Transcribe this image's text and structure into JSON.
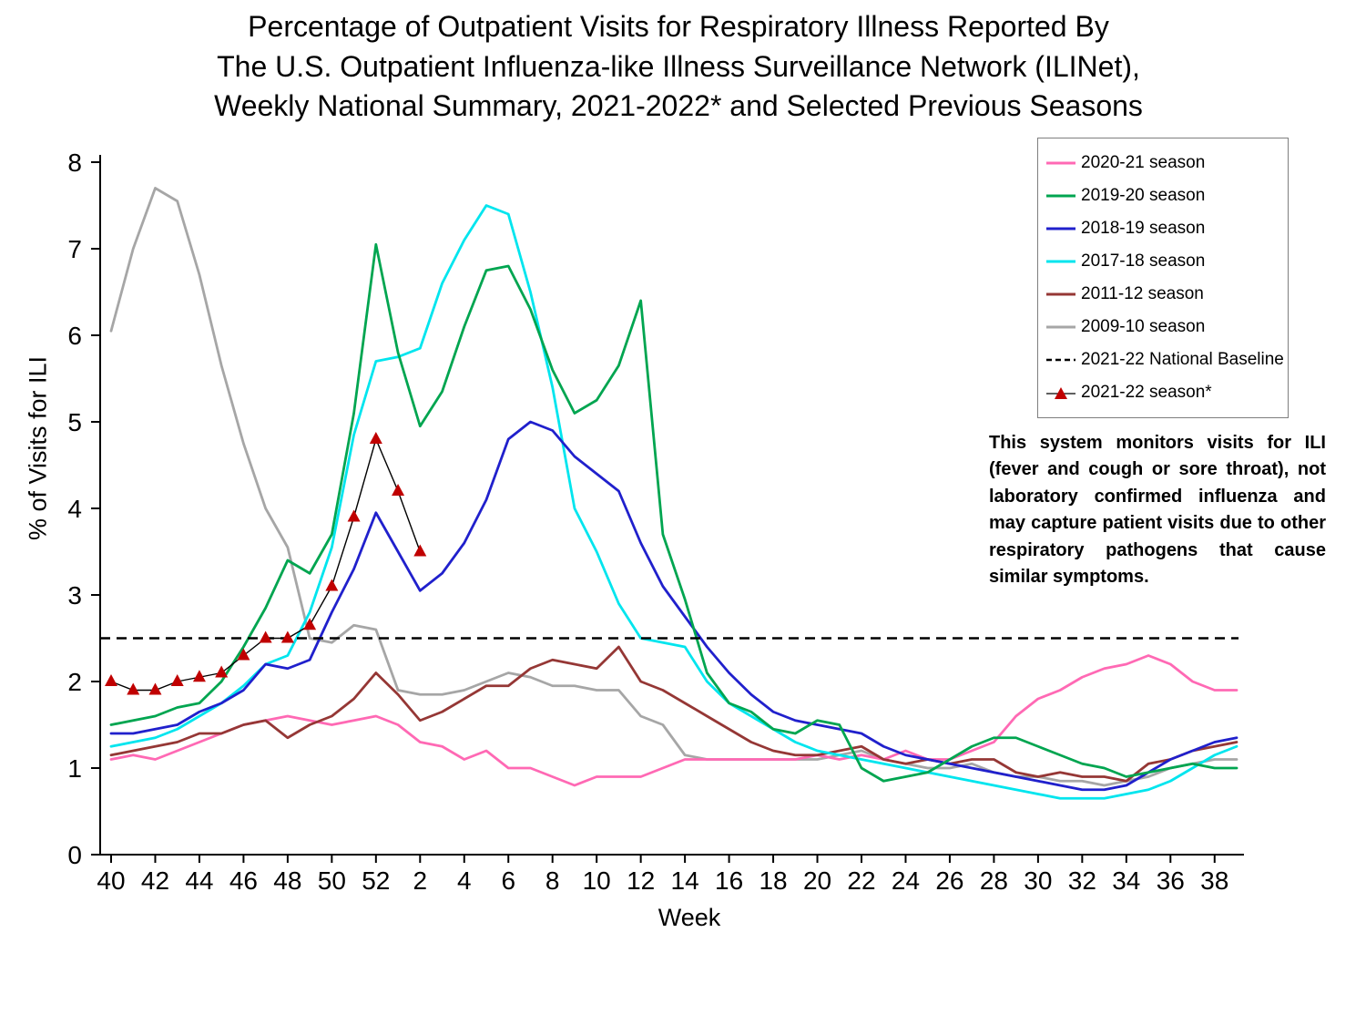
{
  "title": {
    "line1": "Percentage of Outpatient Visits for Respiratory Illness Reported By",
    "line2": "The U.S. Outpatient Influenza-like Illness Surveillance Network (ILINet),",
    "line3": "Weekly National Summary, 2021-2022* and Selected Previous Seasons"
  },
  "annotation": {
    "text": "This system monitors visits for ILI (fever and cough or sore throat), not laboratory confirmed influenza and may capture patient visits due to other respiratory pathogens that cause similar symptoms."
  },
  "legend": {
    "items": [
      {
        "label": "2020-21 season",
        "color": "#FF69B4",
        "style": "solid"
      },
      {
        "label": "2019-20 season",
        "color": "#00A550",
        "style": "solid"
      },
      {
        "label": "2018-19 season",
        "color": "#2020CC",
        "style": "solid"
      },
      {
        "label": "2017-18 season",
        "color": "#00E5EE",
        "style": "solid"
      },
      {
        "label": "2011-12 season",
        "color": "#953735",
        "style": "solid"
      },
      {
        "label": "2009-10 season",
        "color": "#A6A6A6",
        "style": "solid"
      },
      {
        "label": "2021-22 National Baseline",
        "color": "#000000",
        "style": "dashed"
      },
      {
        "label": "2021-22 season*",
        "color": "#C00000",
        "style": "triangle"
      }
    ]
  },
  "chart_data": {
    "type": "line",
    "title": "Percentage of Outpatient Visits for Respiratory Illness Reported By The U.S. Outpatient Influenza-like Illness Surveillance Network (ILINet), Weekly National Summary, 2021-2022* and Selected Previous Seasons",
    "xlabel": "Week",
    "ylabel": "% of Visits for ILI",
    "ylim": [
      0,
      8
    ],
    "y_ticks": [
      0,
      1,
      2,
      3,
      4,
      5,
      6,
      7,
      8
    ],
    "x_categories": [
      40,
      41,
      42,
      43,
      44,
      45,
      46,
      47,
      48,
      49,
      50,
      51,
      52,
      1,
      2,
      3,
      4,
      5,
      6,
      7,
      8,
      9,
      10,
      11,
      12,
      13,
      14,
      15,
      16,
      17,
      18,
      19,
      20,
      21,
      22,
      23,
      24,
      25,
      26,
      27,
      28,
      29,
      30,
      31,
      32,
      33,
      34,
      35,
      36,
      37,
      38,
      39
    ],
    "x_tick_labels": [
      40,
      42,
      44,
      46,
      48,
      50,
      52,
      2,
      4,
      6,
      8,
      10,
      12,
      14,
      16,
      18,
      20,
      22,
      24,
      26,
      28,
      30,
      32,
      34,
      36,
      38
    ],
    "baseline": {
      "label": "2021-22 National Baseline",
      "value": 2.5
    },
    "legend_position": "top-right",
    "grid": false,
    "series": [
      {
        "name": "2009-10 season",
        "color": "#A6A6A6",
        "values": [
          6.05,
          7.0,
          7.7,
          7.55,
          6.7,
          5.65,
          4.75,
          4.0,
          3.55,
          2.5,
          2.45,
          2.65,
          2.6,
          1.9,
          1.85,
          1.85,
          1.9,
          2.0,
          2.1,
          2.05,
          1.95,
          1.95,
          1.9,
          1.9,
          1.6,
          1.5,
          1.15,
          1.1,
          1.1,
          1.1,
          1.1,
          1.1,
          1.1,
          1.15,
          1.2,
          1.1,
          1.05,
          1.0,
          1.0,
          1.05,
          0.95,
          0.9,
          0.9,
          0.85,
          0.85,
          0.8,
          0.85,
          0.9,
          1.0,
          1.05,
          1.1,
          1.1
        ]
      },
      {
        "name": "2020-21 season",
        "color": "#FF69B4",
        "values": [
          1.1,
          1.15,
          1.1,
          1.2,
          1.3,
          1.4,
          1.5,
          1.55,
          1.6,
          1.55,
          1.5,
          1.55,
          1.6,
          1.5,
          1.3,
          1.25,
          1.1,
          1.2,
          1.0,
          1.0,
          0.9,
          0.8,
          0.9,
          0.9,
          0.9,
          1.0,
          1.1,
          1.1,
          1.1,
          1.1,
          1.1,
          1.1,
          1.15,
          1.1,
          1.15,
          1.1,
          1.2,
          1.1,
          1.1,
          1.2,
          1.3,
          1.6,
          1.8,
          1.9,
          2.05,
          2.15,
          2.2,
          2.3,
          2.2,
          2.0,
          1.9,
          1.9
        ]
      },
      {
        "name": "2011-12 season",
        "color": "#953735",
        "values": [
          1.15,
          1.2,
          1.25,
          1.3,
          1.4,
          1.4,
          1.5,
          1.55,
          1.35,
          1.5,
          1.6,
          1.8,
          2.1,
          1.85,
          1.55,
          1.65,
          1.8,
          1.95,
          1.95,
          2.15,
          2.25,
          2.2,
          2.15,
          2.4,
          2.0,
          1.9,
          1.75,
          1.6,
          1.45,
          1.3,
          1.2,
          1.15,
          1.15,
          1.2,
          1.25,
          1.1,
          1.05,
          1.1,
          1.05,
          1.1,
          1.1,
          0.95,
          0.9,
          0.95,
          0.9,
          0.9,
          0.85,
          1.05,
          1.1,
          1.2,
          1.25,
          1.3
        ]
      },
      {
        "name": "2017-18 season",
        "color": "#00E5EE",
        "values": [
          1.25,
          1.3,
          1.35,
          1.45,
          1.6,
          1.75,
          1.95,
          2.2,
          2.3,
          2.8,
          3.55,
          4.85,
          5.7,
          5.75,
          5.85,
          6.6,
          7.1,
          7.5,
          7.4,
          6.5,
          5.4,
          4.0,
          3.5,
          2.9,
          2.5,
          2.45,
          2.4,
          2.0,
          1.75,
          1.6,
          1.45,
          1.3,
          1.2,
          1.15,
          1.1,
          1.05,
          1.0,
          0.95,
          0.9,
          0.85,
          0.8,
          0.75,
          0.7,
          0.65,
          0.65,
          0.65,
          0.7,
          0.75,
          0.85,
          1.0,
          1.15,
          1.25
        ]
      },
      {
        "name": "2018-19 season",
        "color": "#2020CC",
        "values": [
          1.4,
          1.4,
          1.45,
          1.5,
          1.65,
          1.75,
          1.9,
          2.2,
          2.15,
          2.25,
          2.8,
          3.3,
          3.95,
          3.5,
          3.05,
          3.25,
          3.6,
          4.1,
          4.8,
          5.0,
          4.9,
          4.6,
          4.4,
          4.2,
          3.6,
          3.1,
          2.75,
          2.4,
          2.1,
          1.85,
          1.65,
          1.55,
          1.5,
          1.45,
          1.4,
          1.25,
          1.15,
          1.1,
          1.05,
          1.0,
          0.95,
          0.9,
          0.85,
          0.8,
          0.75,
          0.75,
          0.8,
          0.95,
          1.1,
          1.2,
          1.3,
          1.35
        ]
      },
      {
        "name": "2019-20 season",
        "color": "#00A550",
        "values": [
          1.5,
          1.55,
          1.6,
          1.7,
          1.75,
          2.0,
          2.4,
          2.85,
          3.4,
          3.25,
          3.7,
          5.1,
          7.05,
          5.8,
          4.95,
          5.35,
          6.1,
          6.75,
          6.8,
          6.3,
          5.6,
          5.1,
          5.25,
          5.65,
          6.4,
          3.7,
          2.95,
          2.1,
          1.75,
          1.65,
          1.45,
          1.4,
          1.55,
          1.5,
          1.0,
          0.85,
          0.9,
          0.95,
          1.1,
          1.25,
          1.35,
          1.35,
          1.25,
          1.15,
          1.05,
          1.0,
          0.9,
          0.95,
          1.0,
          1.05,
          1.0,
          1.0
        ]
      },
      {
        "name": "2021-22 season*",
        "color": "#C00000",
        "marker": "triangle",
        "line_color": "#000000",
        "values": [
          2.0,
          1.9,
          1.9,
          2.0,
          2.05,
          2.1,
          2.3,
          2.5,
          2.5,
          2.65,
          3.1,
          3.9,
          4.8,
          4.2,
          3.5
        ]
      }
    ]
  }
}
